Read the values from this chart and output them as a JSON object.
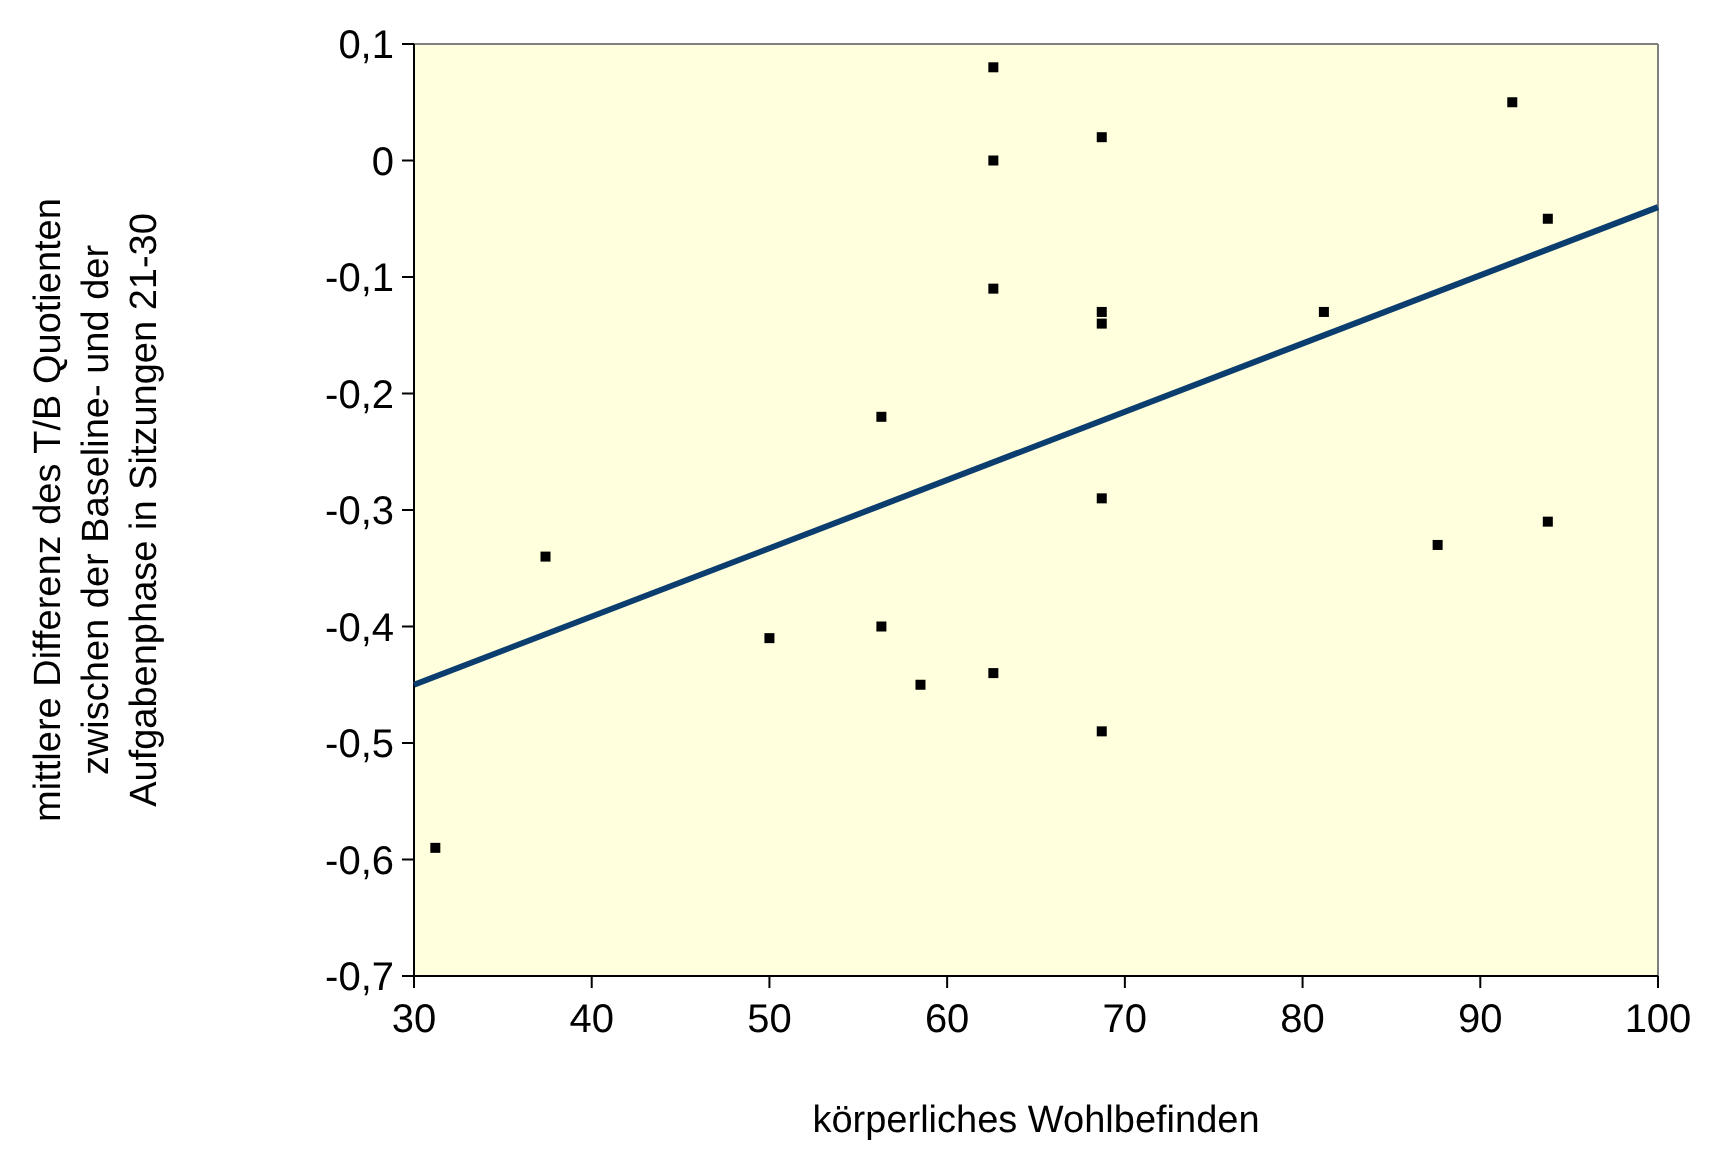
{
  "chart_data": {
    "type": "scatter",
    "xlabel": "körperliches Wohlbefinden",
    "ylabel": "mittlere Differenz des T/B Quotienten\nzwischen der Baseline- und der\nAufgabenphase in Sitzungen 21-30",
    "xlim": [
      30,
      100
    ],
    "ylim": [
      -0.7,
      0.1
    ],
    "xticks": [
      30,
      40,
      50,
      60,
      70,
      80,
      90,
      100
    ],
    "yticks": [
      {
        "value": 0.1,
        "label": "0,1"
      },
      0,
      {
        "value": -0.1,
        "label": "-0,1"
      },
      {
        "value": -0.2,
        "label": "-0,2"
      },
      {
        "value": -0.3,
        "label": "-0,3"
      },
      {
        "value": -0.4,
        "label": "-0,4"
      },
      {
        "value": -0.5,
        "label": "-0,5"
      },
      {
        "value": -0.6,
        "label": "-0,6"
      },
      {
        "value": -0.7,
        "label": "-0,7"
      }
    ],
    "grid": false,
    "series": [
      {
        "marker": "square",
        "color": "#000000",
        "x": [
          31.2,
          37.4,
          50.0,
          56.3,
          56.3,
          58.5,
          62.6,
          62.6,
          62.6,
          62.6,
          68.7,
          68.7,
          68.7,
          68.7,
          68.7,
          81.2,
          87.6,
          91.8,
          93.8,
          93.8
        ],
        "values": [
          -0.59,
          -0.34,
          -0.41,
          -0.22,
          -0.4,
          -0.45,
          0.08,
          0.0,
          -0.11,
          -0.44,
          0.02,
          -0.13,
          -0.14,
          -0.29,
          -0.49,
          -0.13,
          -0.33,
          0.05,
          -0.05,
          -0.31
        ]
      },
      {
        "type": "line",
        "marker": "none",
        "color": "#0b3d6e",
        "x": [
          30,
          100
        ],
        "values": [
          -0.45,
          -0.04
        ]
      }
    ]
  }
}
